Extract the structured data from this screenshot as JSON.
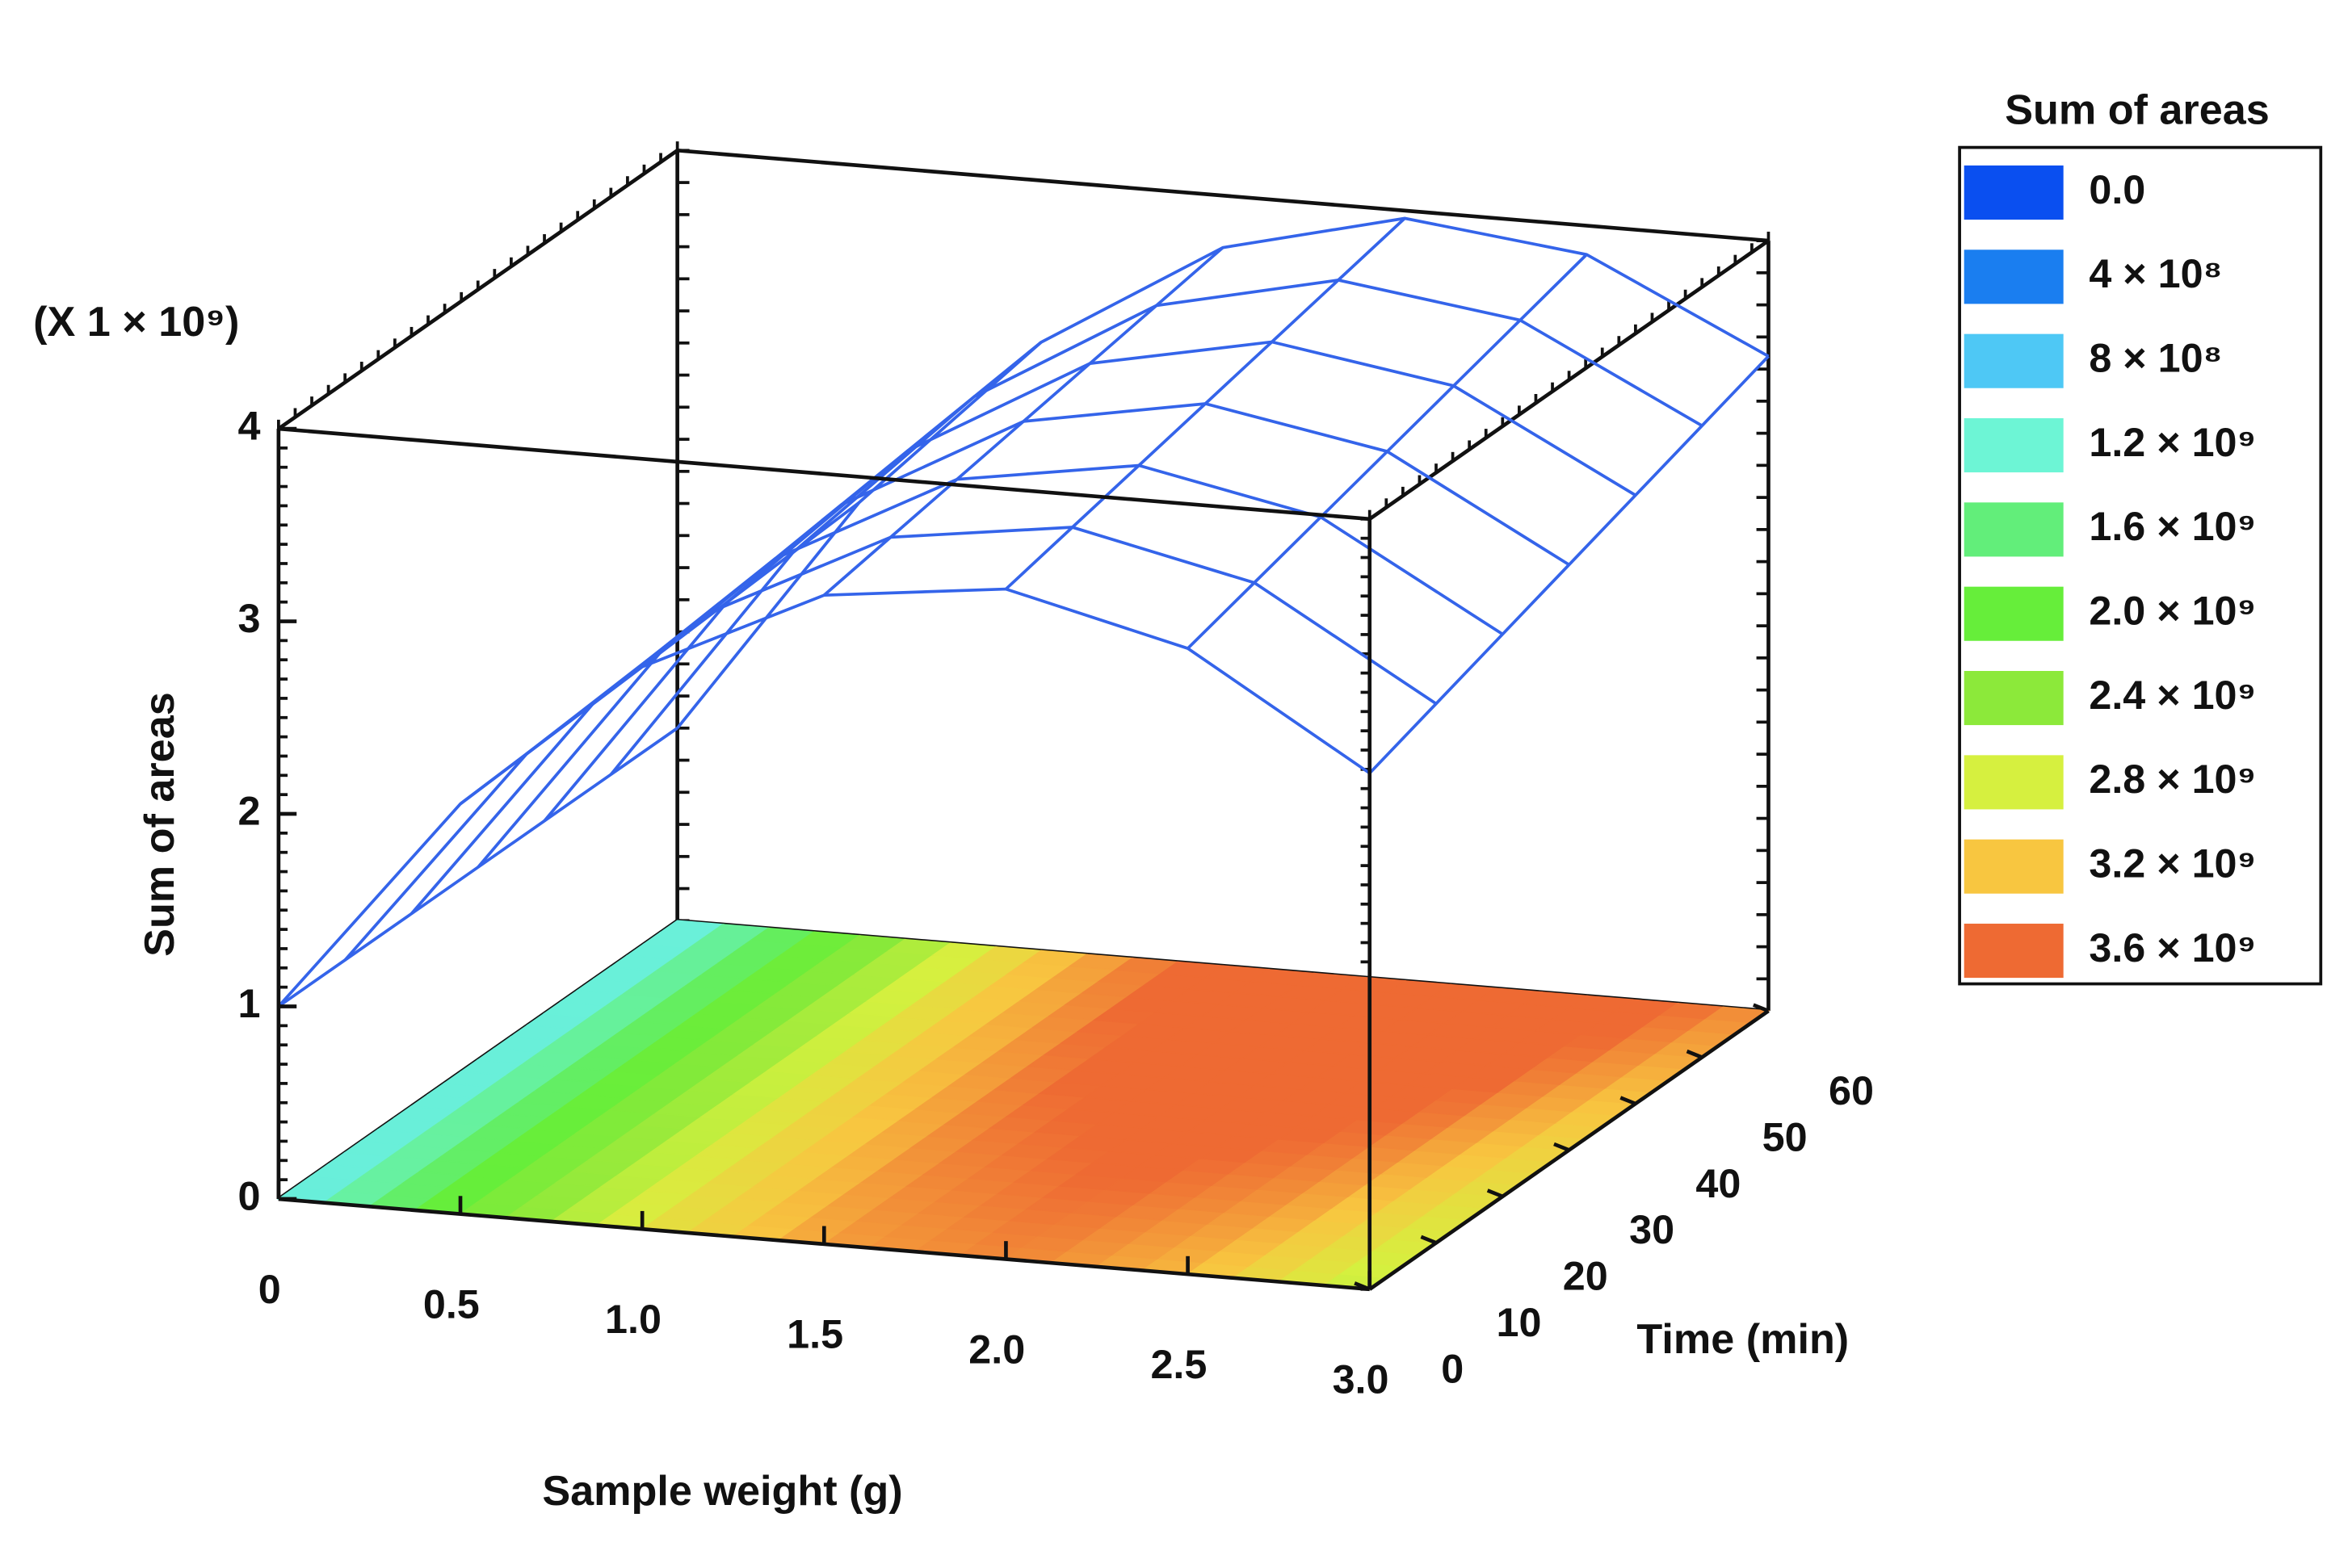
{
  "chart_data": {
    "type": "surface",
    "xlabel": "Sample weight (g)",
    "ylabel": "Time (min)",
    "zlabel": "Sum of areas",
    "z_multiplier": "(X 1 × 10⁹)",
    "x": [
      0,
      0.5,
      1,
      1.5,
      2,
      2.5,
      3
    ],
    "y": [
      0,
      10,
      20,
      30,
      40,
      50,
      60
    ],
    "z": [
      [
        1,
        2.13,
        2.92,
        3.37,
        3.48,
        3.25,
        2.68
      ],
      [
        1,
        2.15,
        2.96,
        3.43,
        3.56,
        3.35,
        2.8
      ],
      [
        1,
        2.17,
        3.0,
        3.49,
        3.64,
        3.45,
        2.92
      ],
      [
        1,
        2.19,
        3.04,
        3.55,
        3.72,
        3.55,
        3.04
      ],
      [
        1,
        2.21,
        3.08,
        3.61,
        3.8,
        3.65,
        3.16
      ],
      [
        1,
        2.23,
        3.12,
        3.67,
        3.88,
        3.75,
        3.28
      ],
      [
        1,
        2.25,
        3.16,
        3.73,
        3.96,
        3.85,
        3.4
      ]
    ],
    "xlim": [
      0,
      3
    ],
    "ylim": [
      0,
      60
    ],
    "zlim": [
      0,
      4
    ],
    "xticks": [
      0,
      0.5,
      {
        "value": 1,
        "label": "1.0"
      },
      1.5,
      {
        "value": 2,
        "label": "2.0"
      },
      2.5,
      {
        "value": 3,
        "label": "3.0"
      }
    ],
    "yticks": [
      0,
      10,
      20,
      30,
      40,
      50,
      60
    ],
    "zticks": [
      0,
      1,
      2,
      3,
      4
    ],
    "mesh_color": "#3464ea",
    "legend": {
      "title": "Sum of areas",
      "levels": [
        {
          "value": 0,
          "label": "0.0",
          "color": "#0a4ff0"
        },
        {
          "value": 0.4,
          "label": "4 × 10⁸",
          "color": "#1a7ef0"
        },
        {
          "value": 0.8,
          "label": "8 × 10⁸",
          "color": "#4ec8f5"
        },
        {
          "value": 1.2,
          "label": "1.2 × 10⁹",
          "color": "#6df5d5"
        },
        {
          "value": 1.6,
          "label": "1.6 × 10⁹",
          "color": "#62ee7a"
        },
        {
          "value": 2.0,
          "label": "2.0 × 10⁹",
          "color": "#66ee3a"
        },
        {
          "value": 2.4,
          "label": "2.4 × 10⁹",
          "color": "#8ce93a"
        },
        {
          "value": 2.8,
          "label": "2.8 × 10⁹",
          "color": "#d6f03f"
        },
        {
          "value": 3.2,
          "label": "3.2 × 10⁹",
          "color": "#f8c640"
        },
        {
          "value": 3.6,
          "label": "3.6 × 10⁹",
          "color": "#ee6a33"
        }
      ]
    }
  }
}
